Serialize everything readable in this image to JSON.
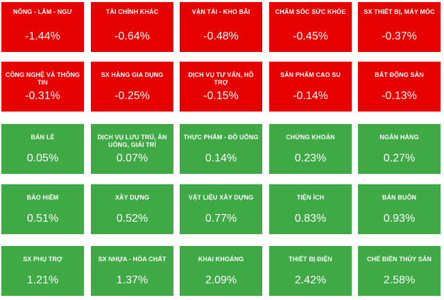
{
  "sectors": [
    {
      "name": "NÔNG - LÂM - NGƯ",
      "change": "-1.44%",
      "status": "down"
    },
    {
      "name": "TÀI CHÍNH KHÁC",
      "change": "-0.64%",
      "status": "down"
    },
    {
      "name": "VẬN TẢI - KHO BÃI",
      "change": "-0.48%",
      "status": "down"
    },
    {
      "name": "CHĂM SÓC SỨC KHỎE",
      "change": "-0.45%",
      "status": "down"
    },
    {
      "name": "SX THIẾT BỊ, MÁY MÓC",
      "change": "-0.37%",
      "status": "down"
    },
    {
      "name": "CÔNG NGHỆ VÀ THÔNG TIN",
      "change": "-0.31%",
      "status": "down"
    },
    {
      "name": "SX HÀNG GIA DỤNG",
      "change": "-0.25%",
      "status": "down"
    },
    {
      "name": "DỊCH VỤ TƯ VẤN, HỖ TRỢ",
      "change": "-0.15%",
      "status": "down"
    },
    {
      "name": "SẢN PHẨM CAO SU",
      "change": "-0.14%",
      "status": "down"
    },
    {
      "name": "BẤT ĐỘNG SẢN",
      "change": "-0.13%",
      "status": "down"
    },
    {
      "name": "BÁN LẺ",
      "change": "0.05%",
      "status": "up"
    },
    {
      "name": "DỊCH VỤ LƯU TRÚ, ĂN UỐNG, GIẢI TRÍ",
      "change": "0.07%",
      "status": "up"
    },
    {
      "name": "THỰC PHẨM - ĐỒ UỐNG",
      "change": "0.14%",
      "status": "up"
    },
    {
      "name": "CHỨNG KHOÁN",
      "change": "0.23%",
      "status": "up"
    },
    {
      "name": "NGÂN HÀNG",
      "change": "0.27%",
      "status": "up"
    },
    {
      "name": "BẢO HIỂM",
      "change": "0.51%",
      "status": "up"
    },
    {
      "name": "XÂY DỰNG",
      "change": "0.52%",
      "status": "up"
    },
    {
      "name": "VẬT LIỆU XÂY DỰNG",
      "change": "0.77%",
      "status": "up"
    },
    {
      "name": "TIỆN ÍCH",
      "change": "0.83%",
      "status": "up"
    },
    {
      "name": "BÁN BUÔN",
      "change": "0.93%",
      "status": "up"
    },
    {
      "name": "SX PHỤ TRỢ",
      "change": "1.21%",
      "status": "up"
    },
    {
      "name": "SX NHỰA - HÓA CHẤT",
      "change": "1.37%",
      "status": "up"
    },
    {
      "name": "KHAI KHOÁNG",
      "change": "2.09%",
      "status": "up"
    },
    {
      "name": "THIẾT BỊ ĐIỆN",
      "change": "2.42%",
      "status": "up"
    },
    {
      "name": "CHẾ BIẾN THỦY SẢN",
      "change": "2.58%",
      "status": "up"
    }
  ],
  "colors": {
    "down": "#e60000",
    "up": "#3faa45",
    "text": "#ffffff"
  }
}
